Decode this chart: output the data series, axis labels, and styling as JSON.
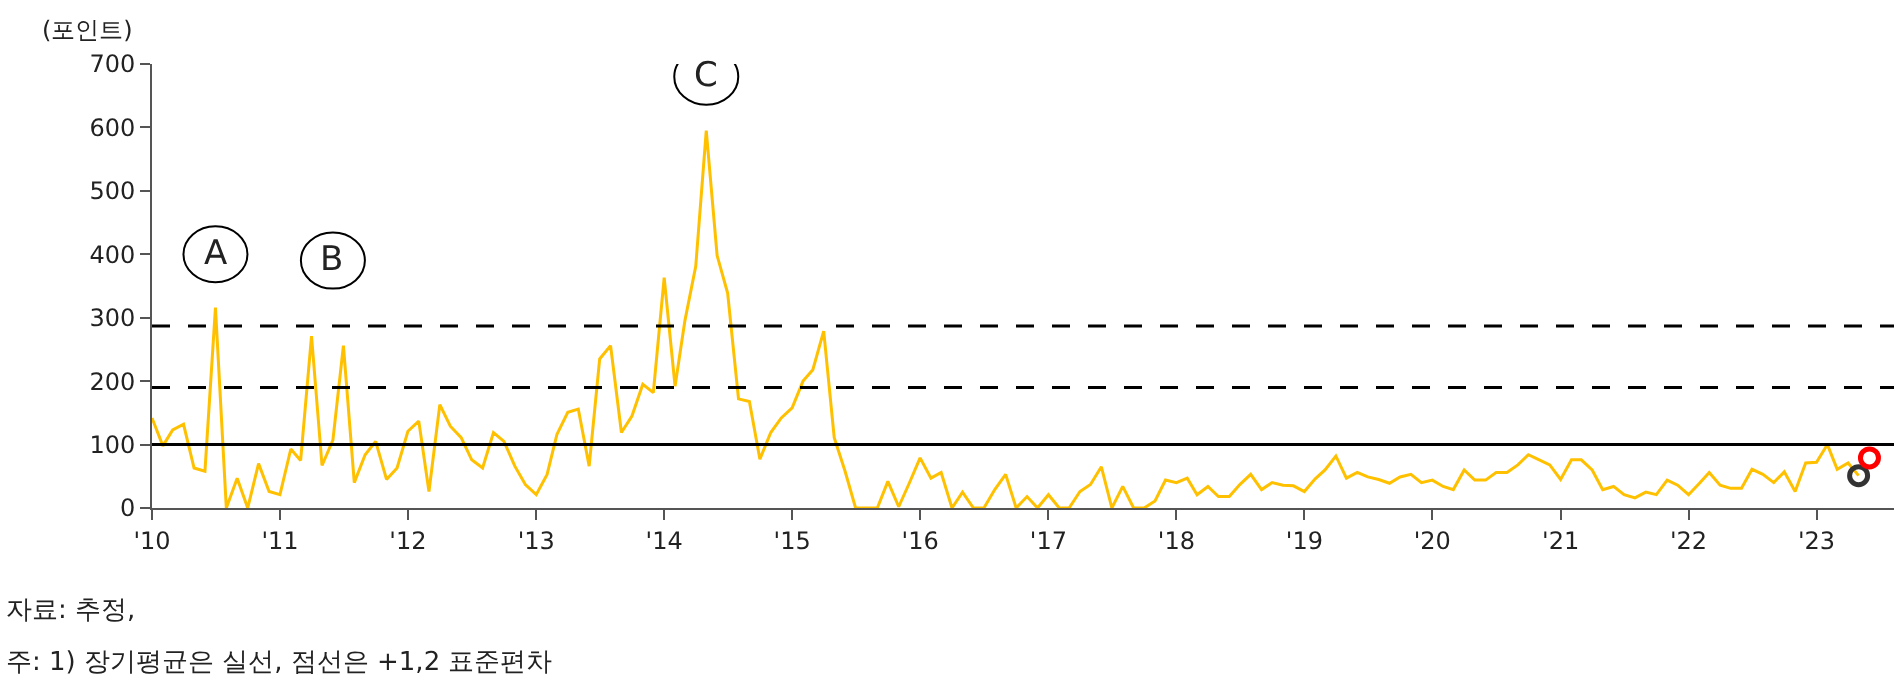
{
  "chart_data": {
    "type": "line",
    "ylabel": "(포인트)",
    "x": [
      "2010-01",
      "2010-02",
      "2010-03",
      "2010-04",
      "2010-05",
      "2010-06",
      "2010-07",
      "2010-08",
      "2010-09",
      "2010-10",
      "2010-11",
      "2010-12",
      "2011-01",
      "2011-02",
      "2011-03",
      "2011-04",
      "2011-05",
      "2011-06",
      "2011-07",
      "2011-08",
      "2011-09",
      "2011-10",
      "2011-11",
      "2011-12",
      "2012-01",
      "2012-02",
      "2012-03",
      "2012-04",
      "2012-05",
      "2012-06",
      "2012-07",
      "2012-08",
      "2012-09",
      "2012-10",
      "2012-11",
      "2012-12",
      "2013-01",
      "2013-02",
      "2013-03",
      "2013-04",
      "2013-05",
      "2013-06",
      "2013-07",
      "2013-08",
      "2013-09",
      "2013-10",
      "2013-11",
      "2013-12",
      "2014-01",
      "2014-02",
      "2014-03",
      "2014-04",
      "2014-05",
      "2014-06",
      "2014-07",
      "2014-08",
      "2014-09",
      "2014-10",
      "2014-11",
      "2014-12",
      "2015-01",
      "2015-02",
      "2015-03",
      "2015-04",
      "2015-05",
      "2015-06",
      "2015-07",
      "2015-08",
      "2015-09",
      "2015-10",
      "2015-11",
      "2015-12",
      "2016-01",
      "2016-02",
      "2016-03",
      "2016-04",
      "2016-05",
      "2016-06",
      "2016-07",
      "2016-08",
      "2016-09",
      "2016-10",
      "2016-11",
      "2016-12",
      "2017-01",
      "2017-02",
      "2017-03",
      "2017-04",
      "2017-05",
      "2017-06",
      "2017-07",
      "2017-08",
      "2017-09",
      "2017-10",
      "2017-11",
      "2017-12",
      "2018-01",
      "2018-02",
      "2018-03",
      "2018-04",
      "2018-05",
      "2018-06",
      "2018-07",
      "2018-08",
      "2018-09",
      "2018-10",
      "2018-11",
      "2018-12",
      "2019-01",
      "2019-02",
      "2019-03",
      "2019-04",
      "2019-05",
      "2019-06",
      "2019-07",
      "2019-08",
      "2019-09",
      "2019-10",
      "2019-11",
      "2019-12",
      "2020-01",
      "2020-02",
      "2020-03",
      "2020-04",
      "2020-05",
      "2020-06",
      "2020-07",
      "2020-08",
      "2020-09",
      "2020-10",
      "2020-11",
      "2020-12",
      "2021-01",
      "2021-02",
      "2021-03",
      "2021-04",
      "2021-05",
      "2021-06",
      "2021-07",
      "2021-08",
      "2021-09",
      "2021-10",
      "2021-11",
      "2021-12",
      "2022-01",
      "2022-02",
      "2022-03",
      "2022-04",
      "2022-05",
      "2022-06",
      "2022-07",
      "2022-08",
      "2022-09",
      "2022-10",
      "2022-11",
      "2022-12",
      "2023-01",
      "2023-02",
      "2023-03",
      "2023-04",
      "2023-05"
    ],
    "series": [
      {
        "color": "#ffc000",
        "values": [
          142,
          98,
          123,
          132,
          63,
          58,
          316,
          0,
          47,
          0,
          70,
          26,
          21,
          93,
          75,
          271,
          67,
          107,
          256,
          40,
          84,
          105,
          45,
          63,
          121,
          137,
          26,
          163,
          129,
          111,
          76,
          63,
          119,
          105,
          66,
          37,
          21,
          53,
          116,
          151,
          156,
          66,
          235,
          256,
          119,
          145,
          195,
          182,
          363,
          192,
          295,
          381,
          595,
          398,
          339,
          172,
          168,
          77,
          119,
          142,
          158,
          200,
          218,
          279,
          111,
          58,
          0,
          0,
          0,
          42,
          2,
          39,
          79,
          47,
          56,
          0,
          25,
          0,
          0,
          29,
          53,
          0,
          18,
          0,
          21,
          0,
          0,
          26,
          37,
          65,
          0,
          34,
          0,
          0,
          11,
          44,
          40,
          47,
          21,
          34,
          18,
          18,
          37,
          53,
          29,
          40,
          36,
          35,
          26,
          46,
          60,
          82,
          47,
          56,
          49,
          45,
          39,
          49,
          53,
          40,
          44,
          34,
          29,
          60,
          44,
          44,
          56,
          56,
          68,
          84,
          76,
          68,
          45,
          76,
          76,
          60,
          29,
          34,
          21,
          16,
          25,
          21,
          44,
          36,
          21,
          39,
          56,
          36,
          31,
          31,
          61,
          53,
          40,
          57,
          26,
          71,
          72,
          100,
          61,
          71,
          51
        ]
      },
      {
        "type": "scatter",
        "color": "#333333",
        "marker": "circle",
        "x": [
          "2023-05"
        ],
        "values": [
          51
        ]
      },
      {
        "type": "scatter",
        "color": "#ff0000",
        "marker": "circle",
        "x": [
          "2023-06"
        ],
        "values": [
          79
        ]
      }
    ],
    "xlim": [
      "2010-01",
      "2023-08-10"
    ],
    "xticks": [
      {
        "value": "2010-01",
        "label": "'10"
      },
      {
        "value": "2011-01",
        "label": "'11"
      },
      {
        "value": "2012-01",
        "label": "'12"
      },
      {
        "value": "2013-01",
        "label": "'13"
      },
      {
        "value": "2014-01",
        "label": "'14"
      },
      {
        "value": "2015-01",
        "label": "'15"
      },
      {
        "value": "2016-01",
        "label": "'16"
      },
      {
        "value": "2017-01",
        "label": "'17"
      },
      {
        "value": "2018-01",
        "label": "'18"
      },
      {
        "value": "2019-01",
        "label": "'19"
      },
      {
        "value": "2020-01",
        "label": "'20"
      },
      {
        "value": "2021-01",
        "label": "'21"
      },
      {
        "value": "2022-01",
        "label": "'22"
      },
      {
        "value": "2023-01",
        "label": "'23"
      }
    ],
    "ylim": [
      0,
      700
    ],
    "yticks": [
      0,
      100,
      200,
      300,
      400,
      500,
      600,
      700
    ],
    "ref_lines": [
      {
        "axis": "y",
        "value": 100,
        "color": "#000000",
        "line_style": "solid"
      },
      {
        "axis": "y",
        "value": 190,
        "color": "#000000",
        "line_style": "dashed"
      },
      {
        "axis": "y",
        "value": 287,
        "color": "#000000",
        "line_style": "dashed"
      }
    ],
    "annotations": [
      {
        "text": "A",
        "x": "2010-07",
        "y": 400
      },
      {
        "text": "B",
        "x": "2011-06",
        "y": 390
      },
      {
        "text": "C",
        "x": "2014-05",
        "y": 680
      },
      "자료: 추정,",
      "주: 1) 장기평균은 실선, 점선은 +1,2 표준편차"
    ],
    "grid": false,
    "legend": false
  }
}
